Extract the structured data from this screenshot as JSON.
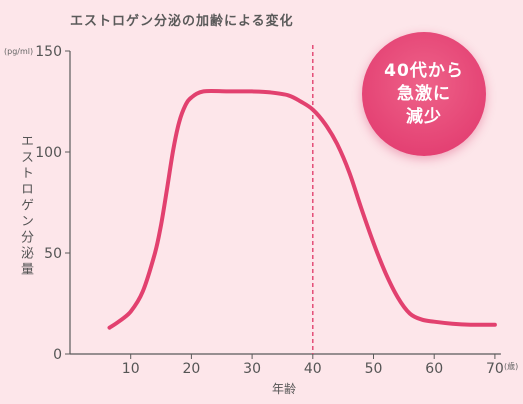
{
  "chart_data": {
    "type": "line",
    "title": "エストロゲン分泌の加齢による変化",
    "ylabel": "エストロゲン分泌量",
    "xlabel": "年齢",
    "y_unit": "(pg/ml)",
    "x_unit": "(歳)",
    "xlim": [
      0,
      70
    ],
    "ylim": [
      0,
      150
    ],
    "x_ticks": [
      10,
      20,
      30,
      40,
      50,
      60,
      70
    ],
    "y_ticks": [
      0,
      50,
      100,
      150
    ],
    "grid": false,
    "reference_line": {
      "x": 40,
      "style": "dashed"
    },
    "series": [
      {
        "color": "#e2416f",
        "points": [
          [
            6.5,
            13
          ],
          [
            8,
            16
          ],
          [
            10,
            21
          ],
          [
            12,
            31
          ],
          [
            14,
            50
          ],
          [
            15,
            64
          ],
          [
            16,
            82
          ],
          [
            17,
            101
          ],
          [
            18,
            115
          ],
          [
            19,
            123
          ],
          [
            20,
            127
          ],
          [
            22,
            130
          ],
          [
            26,
            130
          ],
          [
            30,
            130
          ],
          [
            33,
            129.5
          ],
          [
            36,
            128
          ],
          [
            38,
            125
          ],
          [
            40,
            121
          ],
          [
            42,
            114
          ],
          [
            44,
            104
          ],
          [
            46,
            90
          ],
          [
            48,
            72
          ],
          [
            50,
            55
          ],
          [
            52,
            40
          ],
          [
            54,
            28
          ],
          [
            56,
            20
          ],
          [
            58,
            17
          ],
          [
            60,
            16
          ],
          [
            63,
            15
          ],
          [
            66,
            14.5
          ],
          [
            70,
            14.5
          ]
        ]
      }
    ]
  },
  "badge": {
    "text": "40代から\n急激に\n減少",
    "color": "#e0356b"
  }
}
